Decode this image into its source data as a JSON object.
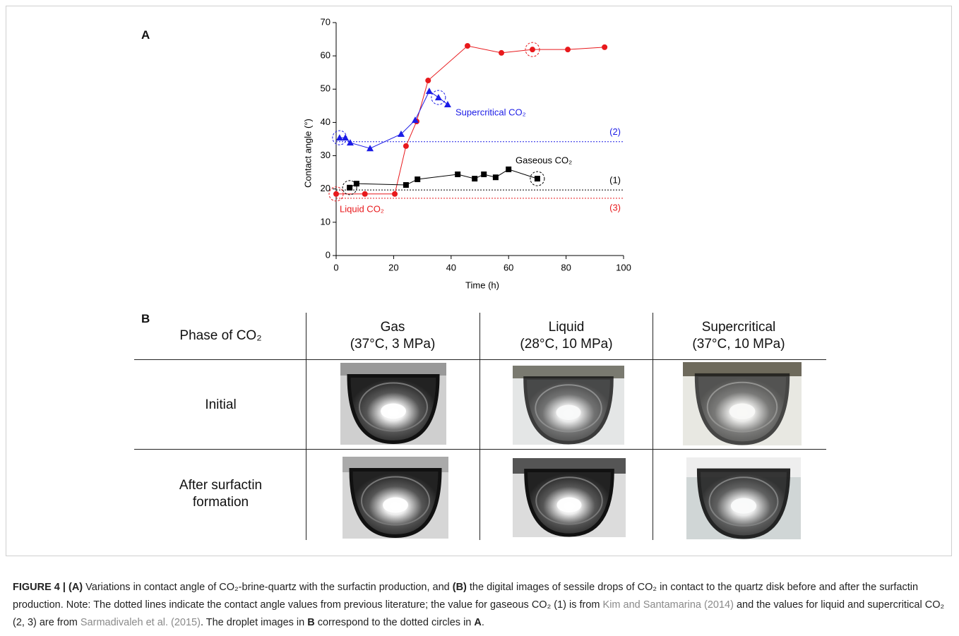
{
  "figure": {
    "panel_a": "A",
    "panel_b": "B"
  },
  "chart_data": {
    "type": "line",
    "xlabel": "Time (h)",
    "ylabel": "Contact angle (°)",
    "xlim": [
      0,
      100
    ],
    "xticks": [
      0,
      20,
      40,
      60,
      80,
      100
    ],
    "ylim": [
      0,
      70
    ],
    "yticks": [
      0,
      10,
      20,
      30,
      40,
      50,
      60,
      70
    ],
    "series": [
      {
        "name": "Liquid CO₂",
        "color": "#e8191c",
        "marker": "circle",
        "x": [
          0,
          10,
          20.4,
          24.3,
          28,
          32,
          45.7,
          57.5,
          68.3,
          80.6,
          93.4
        ],
        "values": [
          18.5,
          18.5,
          18.5,
          32.9,
          40.3,
          52.6,
          63,
          60.9,
          61.9,
          61.9,
          62.6
        ]
      },
      {
        "name": "Supercritical CO₂",
        "color": "#1c1ce6",
        "marker": "triangle",
        "x": [
          1.2,
          3.2,
          4.9,
          11.8,
          22.6,
          27.5,
          32.4,
          35.6,
          38.8
        ],
        "values": [
          35.4,
          35.4,
          33.9,
          32.2,
          36.5,
          40.7,
          49.4,
          47.5,
          45.4
        ]
      },
      {
        "name": "Gaseous CO₂",
        "color": "#000000",
        "marker": "square",
        "x": [
          4.7,
          7.1,
          24.3,
          28.3,
          42.3,
          48.2,
          51.4,
          55.5,
          60,
          70
        ],
        "values": [
          20.4,
          21.6,
          21.2,
          22.9,
          24.4,
          23.1,
          24.4,
          23.5,
          25.9,
          23.1
        ]
      }
    ],
    "reference_lines": [
      {
        "value": 34.2,
        "label": "(2)",
        "color": "#1c1ce6"
      },
      {
        "value": 19.7,
        "label": "(1)",
        "color": "#000000"
      },
      {
        "value": 17.2,
        "label": "(3)",
        "color": "#e8191c"
      }
    ]
  },
  "table": {
    "header": [
      [
        "Phase of CO₂"
      ],
      [
        "Gas",
        "(37°C, 3 MPa)"
      ],
      [
        "Liquid",
        "(28°C, 10 MPa)"
      ],
      [
        "Supercritical",
        "(37°C, 10 MPa)"
      ]
    ],
    "rows": [
      "Initial",
      "After surfactin formation"
    ]
  },
  "caption": [
    "FIGURE 4 | (A)",
    " Variations in contact angle of CO₂-brine-quartz with the surfactin production, and ",
    "(B)",
    " the digital images of sessile drops of CO₂ in contact to the quartz disk before and after the surfactin production. Note: The dotted lines indicate the contact angle values from previous literature; the value for gaseous CO₂ (1) is from ",
    "Kim and Santamarina (2014)",
    " and the values for liquid and supercritical CO₂ (2, 3) are from ",
    "Sarmadivaleh et al. (2015)",
    ". The droplet images in ",
    "B",
    " correspond to the dotted circles in ",
    "A",
    "."
  ]
}
